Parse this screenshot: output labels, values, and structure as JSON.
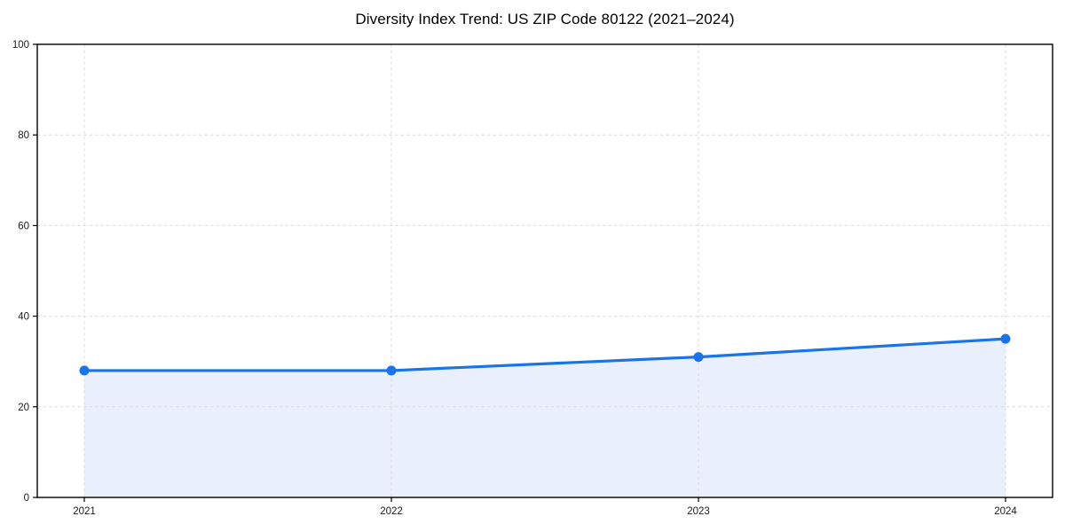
{
  "chart_data": {
    "type": "line",
    "title": "Diversity Index Trend: US ZIP Code 80122 (2021–2024)",
    "categories": [
      "2021",
      "2022",
      "2023",
      "2024"
    ],
    "series": [
      {
        "name": "Diversity Index",
        "values": [
          28,
          28,
          31,
          35
        ]
      }
    ],
    "area_fill": true,
    "markers": true,
    "xlabel": "",
    "ylabel": "",
    "ylim": [
      0,
      100
    ],
    "yticks": [
      0,
      20,
      40,
      60,
      80,
      100
    ],
    "grid": "dashed",
    "legend_position": "none",
    "colors": {
      "line": "#1a73e8",
      "marker": "#1a73e8",
      "area": "#e9f0fc",
      "grid": "#dcdcdc",
      "axis": "#000000",
      "tick_text": "#1a1a1a",
      "background": "#ffffff"
    }
  }
}
